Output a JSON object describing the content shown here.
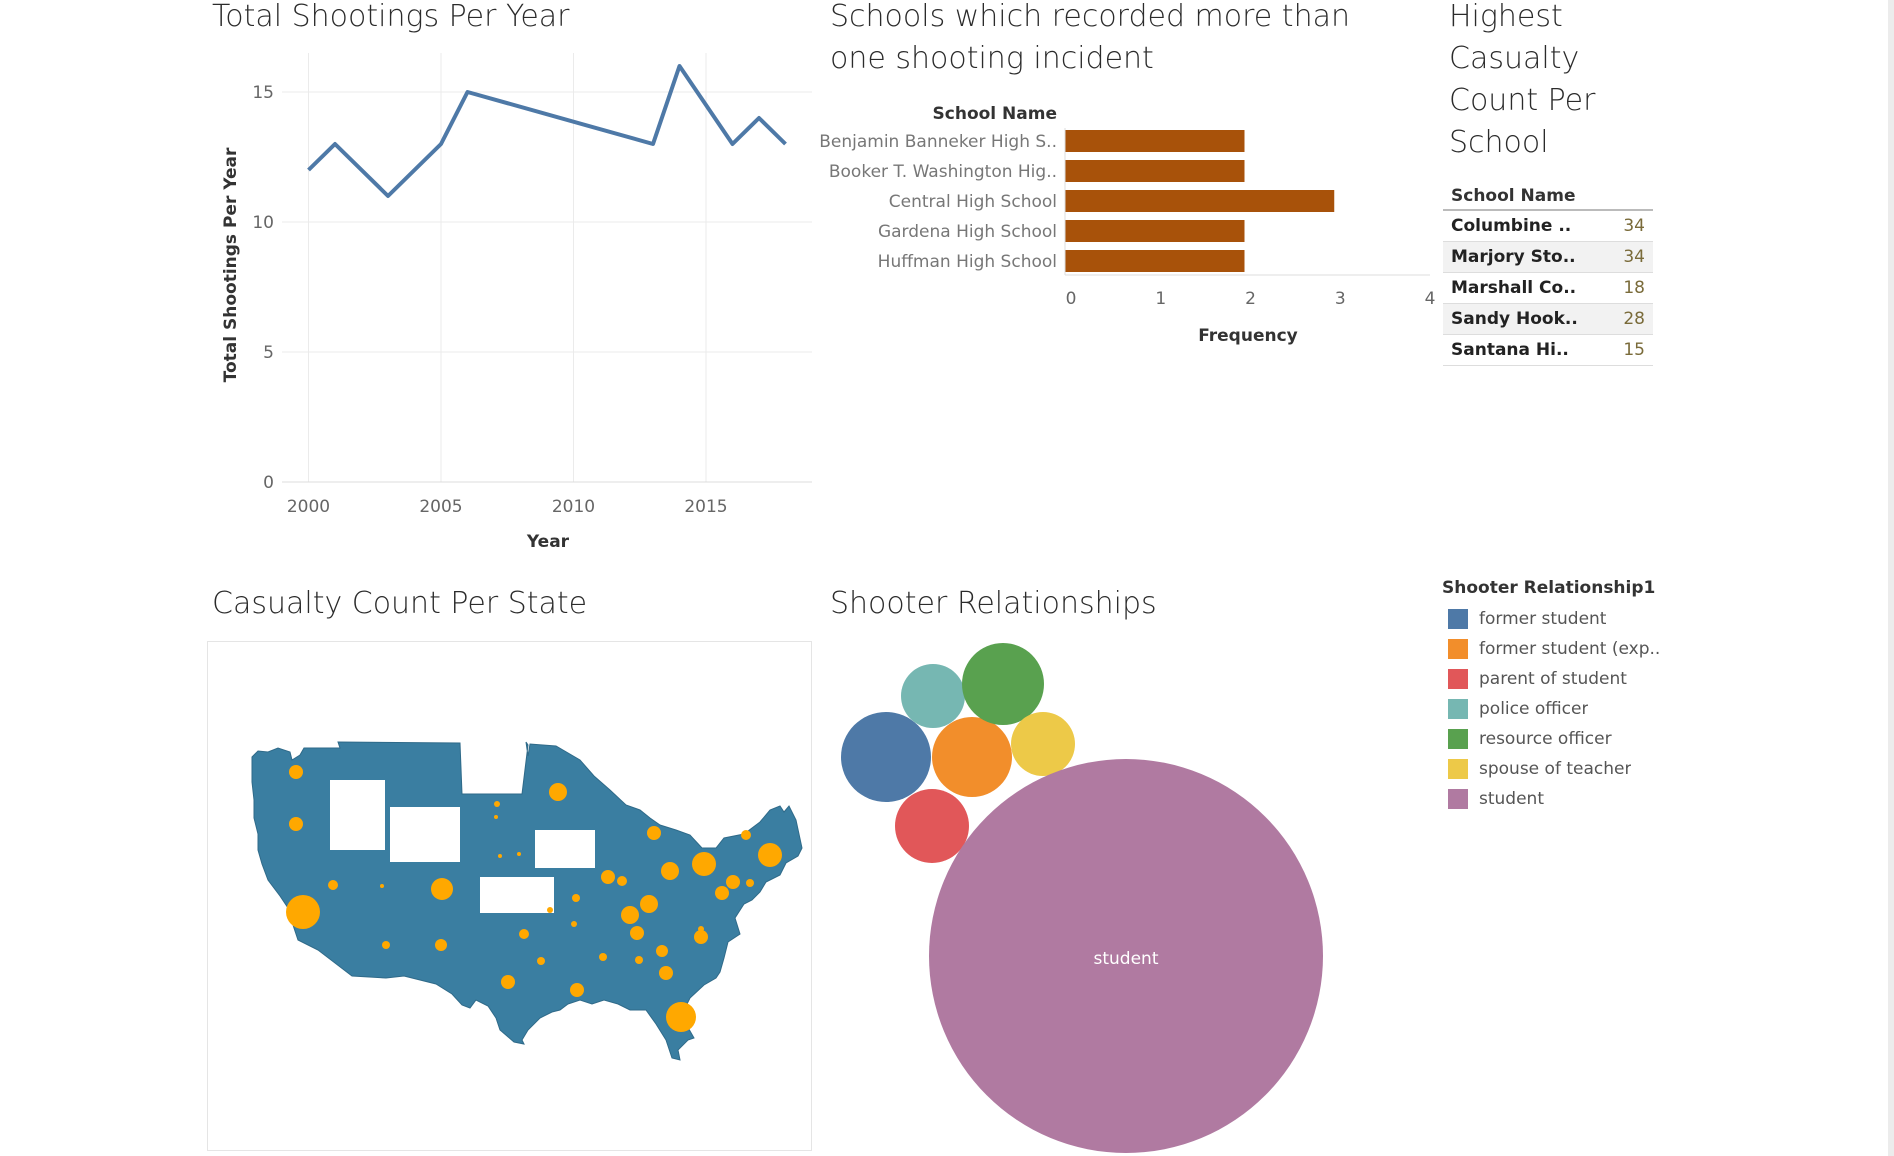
{
  "line_chart": {
    "title": "Total Shootings Per Year",
    "xlabel": "Year",
    "ylabel": "Total Shootings Per Year",
    "x_ticks": [
      "2000",
      "2005",
      "2010",
      "2015"
    ],
    "y_ticks": [
      "0",
      "5",
      "10",
      "15"
    ],
    "color": "#4e79a7"
  },
  "bar_chart": {
    "title": "Schools which recorded more than one shooting incident",
    "category_header": "School Name",
    "xlabel": "Frequency",
    "x_ticks": [
      "0",
      "1",
      "2",
      "3",
      "4"
    ],
    "color": "#a8520a"
  },
  "casualty_table": {
    "title": "Highest Casualty Count Per School",
    "header": "School Name",
    "rows": [
      {
        "name": "Columbine ..",
        "value": "34"
      },
      {
        "name": "Marjory Sto..",
        "value": "34"
      },
      {
        "name": "Marshall Co..",
        "value": "18"
      },
      {
        "name": "Sandy Hook..",
        "value": "28"
      },
      {
        "name": "Santana Hi..",
        "value": "15"
      }
    ]
  },
  "map": {
    "title": "Casualty Count Per State",
    "land_color": "#3a7ea1",
    "bubble_color": "#ffa800"
  },
  "bubble_chart": {
    "title": "Shooter Relationships",
    "legend_title": "Shooter Relationship1",
    "legend": [
      {
        "label": "former student",
        "color": "#4e79a7"
      },
      {
        "label": "former student (exp..",
        "color": "#f28e2b"
      },
      {
        "label": "parent of student",
        "color": "#e15759"
      },
      {
        "label": "police officer",
        "color": "#76b7b2"
      },
      {
        "label": "resource officer",
        "color": "#59a14f"
      },
      {
        "label": "spouse of teacher",
        "color": "#edc948"
      },
      {
        "label": "student",
        "color": "#b07aa1"
      }
    ],
    "bubble_label": "student"
  },
  "chart_data": [
    {
      "type": "line",
      "x": [
        2000,
        2001,
        2003,
        2005,
        2006,
        2013,
        2014,
        2016,
        2017,
        2018
      ],
      "values": [
        12,
        13,
        11,
        13,
        15,
        13,
        16,
        13,
        14,
        13
      ],
      "xlim": [
        1999,
        2019
      ],
      "ylim": [
        0,
        16.5
      ]
    },
    {
      "type": "bar",
      "orientation": "horizontal",
      "categories": [
        "Benjamin Banneker High S..",
        "Booker T. Washington Hig..",
        "Central High School",
        "Gardena High School",
        "Huffman High School"
      ],
      "values": [
        2,
        2,
        3,
        2,
        2
      ],
      "xlim": [
        0,
        4
      ]
    },
    {
      "type": "bubble",
      "categories": [
        "former student",
        "former student (exp..",
        "parent of student",
        "police officer",
        "resource officer",
        "spouse of teacher",
        "student"
      ],
      "values": [
        1.5,
        1.2,
        1,
        0.7,
        1.2,
        0.7,
        28
      ]
    }
  ]
}
